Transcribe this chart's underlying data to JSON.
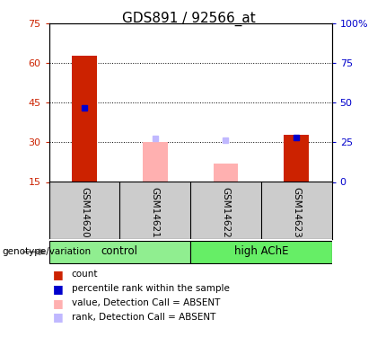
{
  "title": "GDS891 / 92566_at",
  "samples": [
    "GSM14620",
    "GSM14621",
    "GSM14622",
    "GSM14623"
  ],
  "ylim_left": [
    15,
    75
  ],
  "ylim_right": [
    0,
    100
  ],
  "yticks_left": [
    15,
    30,
    45,
    60,
    75
  ],
  "yticks_right": [
    0,
    25,
    50,
    75,
    100
  ],
  "left_color": "#cc2200",
  "right_color": "#0000cc",
  "count_values": [
    63,
    null,
    null,
    33
  ],
  "rank_values": [
    43,
    null,
    null,
    32
  ],
  "absent_value_bars": [
    null,
    30,
    22,
    null
  ],
  "absent_rank_markers": [
    null,
    31.5,
    31,
    null
  ],
  "bar_width": 0.35,
  "legend_items": [
    {
      "color": "#cc2200",
      "label": "count"
    },
    {
      "color": "#0000cc",
      "label": "percentile rank within the sample"
    },
    {
      "color": "#ffb0b0",
      "label": "value, Detection Call = ABSENT"
    },
    {
      "color": "#c0b8ff",
      "label": "rank, Detection Call = ABSENT"
    }
  ],
  "genotype_label": "genotype/variation",
  "sample_area_bg": "#cccccc",
  "absent_bar_color": "#ffb0b0",
  "absent_rank_color": "#c0b8ff",
  "group_defs": [
    {
      "label": "control",
      "start": 0,
      "end": 1,
      "color": "#90ee90"
    },
    {
      "label": "high AChE",
      "start": 2,
      "end": 3,
      "color": "#66ee66"
    }
  ]
}
